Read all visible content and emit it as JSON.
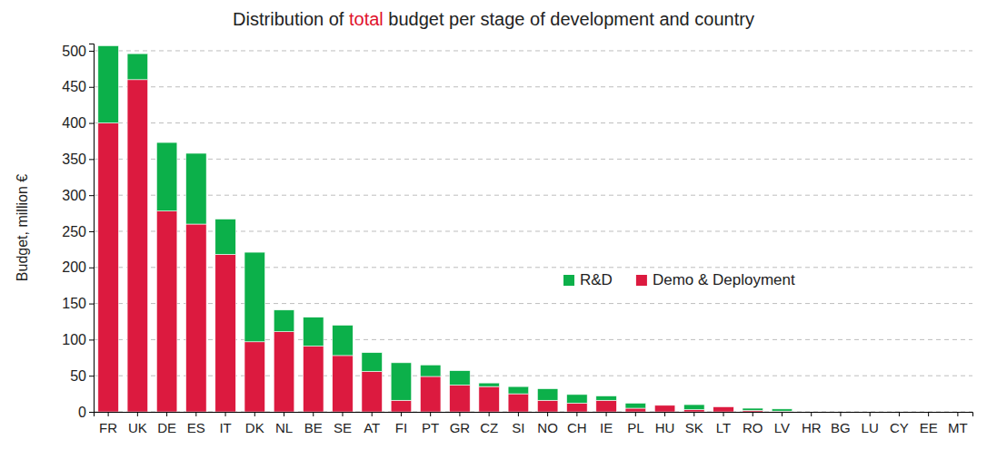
{
  "chart_data": {
    "type": "bar",
    "stacked": true,
    "title": "Distribution of total budget per stage of development and country",
    "y_label": "Budget, million €",
    "categories": [
      "FR",
      "UK",
      "DE",
      "ES",
      "IT",
      "DK",
      "NL",
      "BE",
      "SE",
      "AT",
      "FI",
      "PT",
      "GR",
      "CZ",
      "SI",
      "NO",
      "CH",
      "IE",
      "PL",
      "HU",
      "SK",
      "LT",
      "RO",
      "LV",
      "HR",
      "BG",
      "LU",
      "CY",
      "EE",
      "MT"
    ],
    "series": [
      {
        "name": "R&D",
        "color": "#0cb04a",
        "values": [
          107,
          36,
          95,
          98,
          49,
          124,
          30,
          40,
          42,
          26,
          52,
          16,
          20,
          5,
          10,
          16,
          12,
          6,
          7,
          0,
          7,
          0,
          3,
          3,
          0,
          0,
          0,
          0,
          0,
          0
        ]
      },
      {
        "name": "Demo & Deployment",
        "color": "#dc1a3f",
        "values": [
          400,
          460,
          278,
          260,
          218,
          97,
          111,
          91,
          78,
          56,
          16,
          49,
          37,
          35,
          25,
          16,
          12,
          16,
          5,
          9,
          3,
          7,
          2,
          1,
          0,
          0,
          0,
          0,
          0,
          0
        ]
      }
    ],
    "ylim": [
      0,
      510
    ],
    "yticks": [
      0,
      50,
      100,
      150,
      200,
      250,
      300,
      350,
      400,
      450,
      500
    ],
    "grid": true,
    "legend": "right"
  }
}
